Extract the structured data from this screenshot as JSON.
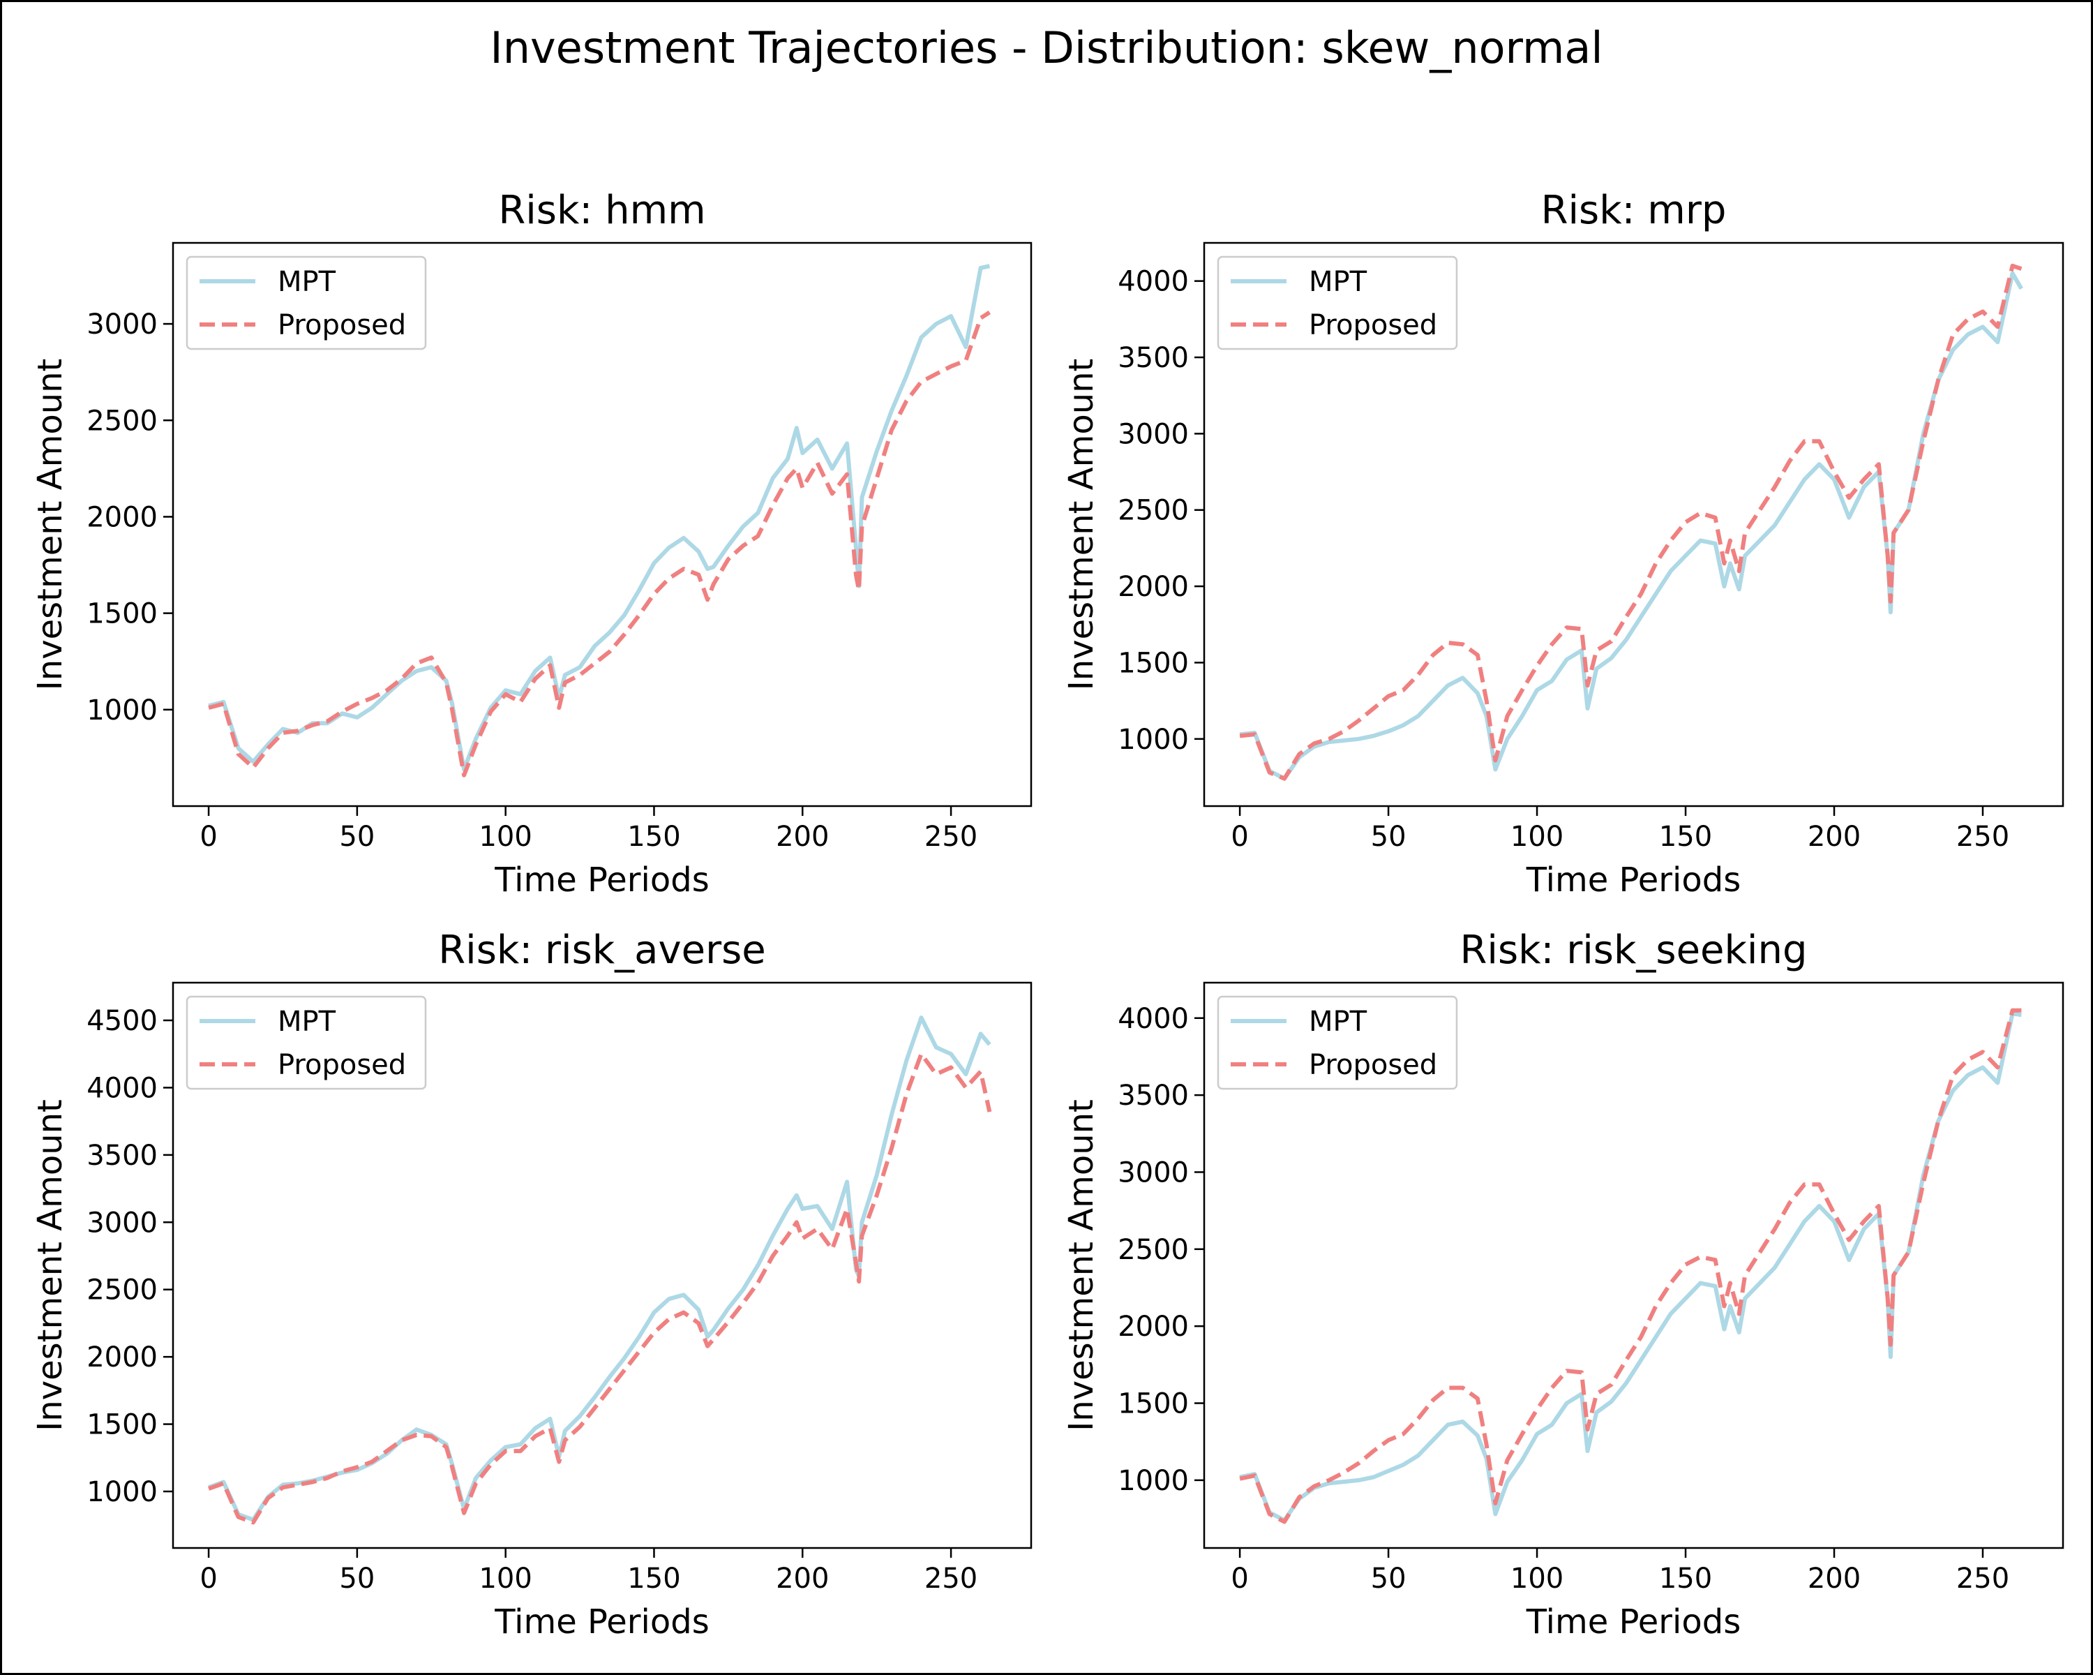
{
  "figure": {
    "suptitle": "Investment Trajectories - Distribution: skew_normal"
  },
  "colors": {
    "mpt": "#add8e6",
    "proposed": "#f08080"
  },
  "chart_data": [
    {
      "type": "line",
      "title": "Risk: hmm",
      "xlabel": "Time Periods",
      "ylabel": "Investment Amount",
      "xlim": [
        -12,
        277
      ],
      "ylim": [
        500,
        3420
      ],
      "xticks": [
        0,
        50,
        100,
        150,
        200,
        250
      ],
      "yticks": [
        1000,
        1500,
        2000,
        2500,
        3000
      ],
      "legend": "top-left",
      "grid": false,
      "series": [
        {
          "name": "MPT",
          "style": "solid",
          "x": [
            0,
            5,
            10,
            15,
            20,
            25,
            30,
            35,
            40,
            45,
            50,
            55,
            60,
            65,
            70,
            75,
            80,
            82,
            86,
            90,
            95,
            100,
            105,
            110,
            115,
            118,
            120,
            125,
            130,
            135,
            140,
            145,
            150,
            155,
            160,
            165,
            168,
            170,
            175,
            180,
            185,
            190,
            195,
            198,
            200,
            205,
            210,
            215,
            218,
            219,
            220,
            225,
            230,
            235,
            240,
            245,
            250,
            255,
            260,
            263
          ],
          "y": [
            1020,
            1040,
            800,
            730,
            820,
            900,
            880,
            930,
            930,
            980,
            960,
            1010,
            1080,
            1150,
            1200,
            1220,
            1150,
            1030,
            690,
            850,
            1010,
            1100,
            1080,
            1200,
            1270,
            1060,
            1180,
            1220,
            1330,
            1400,
            1490,
            1620,
            1760,
            1840,
            1890,
            1820,
            1730,
            1740,
            1850,
            1950,
            2020,
            2200,
            2300,
            2460,
            2330,
            2400,
            2250,
            2380,
            1840,
            1640,
            2100,
            2340,
            2550,
            2730,
            2930,
            3000,
            3040,
            2880,
            3290,
            3300
          ]
        },
        {
          "name": "Proposed",
          "style": "dashed",
          "x": [
            0,
            5,
            10,
            15,
            20,
            25,
            30,
            35,
            40,
            45,
            50,
            55,
            60,
            65,
            70,
            75,
            80,
            82,
            86,
            90,
            95,
            100,
            105,
            110,
            115,
            118,
            120,
            125,
            130,
            135,
            140,
            145,
            150,
            155,
            160,
            165,
            168,
            170,
            175,
            180,
            185,
            190,
            195,
            198,
            200,
            205,
            210,
            215,
            218,
            219,
            220,
            225,
            230,
            235,
            240,
            245,
            250,
            255,
            260,
            263
          ],
          "y": [
            1010,
            1030,
            770,
            700,
            800,
            880,
            890,
            920,
            940,
            990,
            1030,
            1060,
            1100,
            1160,
            1240,
            1270,
            1140,
            1000,
            660,
            820,
            990,
            1080,
            1040,
            1160,
            1230,
            1010,
            1140,
            1180,
            1240,
            1300,
            1390,
            1490,
            1600,
            1680,
            1730,
            1700,
            1570,
            1650,
            1780,
            1850,
            1900,
            2060,
            2200,
            2250,
            2150,
            2280,
            2120,
            2220,
            1700,
            1620,
            1950,
            2200,
            2450,
            2600,
            2700,
            2740,
            2780,
            2810,
            3030,
            3060
          ]
        }
      ]
    },
    {
      "type": "line",
      "title": "Risk: mrp",
      "xlabel": "Time Periods",
      "ylabel": "Investment Amount",
      "xlim": [
        -12,
        277
      ],
      "ylim": [
        560,
        4250
      ],
      "xticks": [
        0,
        50,
        100,
        150,
        200,
        250
      ],
      "yticks": [
        1000,
        1500,
        2000,
        2500,
        3000,
        3500,
        4000
      ],
      "legend": "top-left",
      "grid": false,
      "series": [
        {
          "name": "MPT",
          "style": "solid",
          "x": [
            0,
            5,
            10,
            15,
            20,
            25,
            30,
            35,
            40,
            45,
            50,
            55,
            60,
            65,
            70,
            75,
            80,
            83,
            86,
            90,
            95,
            100,
            105,
            110,
            115,
            117,
            120,
            125,
            130,
            135,
            140,
            145,
            150,
            155,
            160,
            163,
            165,
            168,
            170,
            175,
            180,
            185,
            190,
            195,
            200,
            205,
            210,
            215,
            218,
            219,
            220,
            225,
            230,
            235,
            240,
            245,
            250,
            255,
            260,
            263
          ],
          "y": [
            1030,
            1040,
            790,
            740,
            880,
            950,
            980,
            990,
            1000,
            1020,
            1050,
            1090,
            1150,
            1250,
            1350,
            1400,
            1300,
            1150,
            800,
            1000,
            1150,
            1320,
            1380,
            1520,
            1580,
            1200,
            1460,
            1530,
            1650,
            1800,
            1950,
            2100,
            2200,
            2300,
            2280,
            2000,
            2150,
            1980,
            2200,
            2300,
            2400,
            2550,
            2700,
            2800,
            2700,
            2450,
            2650,
            2750,
            2200,
            1830,
            2350,
            2500,
            3000,
            3350,
            3550,
            3650,
            3700,
            3600,
            4050,
            3950
          ]
        },
        {
          "name": "Proposed",
          "style": "dashed",
          "x": [
            0,
            5,
            10,
            15,
            20,
            25,
            30,
            35,
            40,
            45,
            50,
            55,
            60,
            65,
            70,
            75,
            80,
            83,
            86,
            90,
            95,
            100,
            105,
            110,
            115,
            117,
            120,
            125,
            130,
            135,
            140,
            145,
            150,
            155,
            160,
            163,
            165,
            168,
            170,
            175,
            180,
            185,
            190,
            195,
            200,
            205,
            210,
            215,
            218,
            219,
            220,
            225,
            230,
            235,
            240,
            245,
            250,
            255,
            260,
            263
          ],
          "y": [
            1020,
            1030,
            780,
            740,
            900,
            970,
            1000,
            1050,
            1120,
            1200,
            1280,
            1320,
            1420,
            1550,
            1630,
            1620,
            1550,
            1250,
            860,
            1150,
            1320,
            1480,
            1620,
            1730,
            1720,
            1350,
            1580,
            1640,
            1800,
            1950,
            2150,
            2300,
            2420,
            2480,
            2450,
            2150,
            2300,
            2100,
            2350,
            2500,
            2650,
            2820,
            2950,
            2950,
            2750,
            2580,
            2700,
            2800,
            2200,
            1900,
            2350,
            2500,
            2950,
            3350,
            3650,
            3750,
            3800,
            3700,
            4100,
            4080
          ]
        }
      ]
    },
    {
      "type": "line",
      "title": "Risk: risk_averse",
      "xlabel": "Time Periods",
      "ylabel": "Investment Amount",
      "xlim": [
        -12,
        277
      ],
      "ylim": [
        580,
        4780
      ],
      "xticks": [
        0,
        50,
        100,
        150,
        200,
        250
      ],
      "yticks": [
        1000,
        1500,
        2000,
        2500,
        3000,
        3500,
        4000,
        4500
      ],
      "legend": "top-left",
      "grid": false,
      "series": [
        {
          "name": "MPT",
          "style": "solid",
          "x": [
            0,
            5,
            10,
            15,
            20,
            25,
            30,
            35,
            40,
            45,
            50,
            55,
            60,
            65,
            70,
            75,
            80,
            82,
            86,
            90,
            95,
            100,
            105,
            110,
            115,
            118,
            120,
            125,
            130,
            135,
            140,
            145,
            150,
            155,
            160,
            165,
            168,
            170,
            175,
            180,
            185,
            190,
            195,
            198,
            200,
            205,
            210,
            215,
            218,
            219,
            220,
            225,
            230,
            235,
            240,
            245,
            250,
            255,
            260,
            263
          ],
          "y": [
            1030,
            1070,
            830,
            790,
            960,
            1050,
            1060,
            1080,
            1110,
            1140,
            1160,
            1210,
            1280,
            1380,
            1460,
            1420,
            1350,
            1200,
            870,
            1100,
            1230,
            1330,
            1350,
            1470,
            1540,
            1260,
            1450,
            1560,
            1700,
            1850,
            1990,
            2150,
            2330,
            2430,
            2460,
            2350,
            2150,
            2200,
            2360,
            2500,
            2680,
            2900,
            3100,
            3200,
            3100,
            3120,
            2950,
            3300,
            2650,
            2600,
            3000,
            3350,
            3800,
            4200,
            4520,
            4300,
            4250,
            4100,
            4400,
            4320
          ]
        },
        {
          "name": "Proposed",
          "style": "dashed",
          "x": [
            0,
            5,
            10,
            15,
            20,
            25,
            30,
            35,
            40,
            45,
            50,
            55,
            60,
            65,
            70,
            75,
            80,
            82,
            86,
            90,
            95,
            100,
            105,
            110,
            115,
            118,
            120,
            125,
            130,
            135,
            140,
            145,
            150,
            155,
            160,
            165,
            168,
            170,
            175,
            180,
            185,
            190,
            195,
            198,
            200,
            205,
            210,
            215,
            218,
            219,
            220,
            225,
            230,
            235,
            240,
            245,
            250,
            255,
            260,
            263
          ],
          "y": [
            1020,
            1060,
            810,
            770,
            950,
            1030,
            1050,
            1070,
            1100,
            1150,
            1180,
            1220,
            1300,
            1380,
            1420,
            1410,
            1330,
            1180,
            840,
            1060,
            1200,
            1300,
            1300,
            1410,
            1470,
            1220,
            1380,
            1480,
            1620,
            1760,
            1900,
            2040,
            2180,
            2280,
            2330,
            2250,
            2080,
            2130,
            2260,
            2400,
            2550,
            2750,
            2900,
            3000,
            2880,
            2950,
            2800,
            3100,
            2700,
            2560,
            2900,
            3200,
            3550,
            3950,
            4250,
            4100,
            4150,
            4000,
            4120,
            3820
          ]
        }
      ]
    },
    {
      "type": "line",
      "title": "Risk: risk_seeking",
      "xlabel": "Time Periods",
      "ylabel": "Investment Amount",
      "xlim": [
        -12,
        277
      ],
      "ylim": [
        560,
        4230
      ],
      "xticks": [
        0,
        50,
        100,
        150,
        200,
        250
      ],
      "yticks": [
        1000,
        1500,
        2000,
        2500,
        3000,
        3500,
        4000
      ],
      "legend": "top-left",
      "grid": false,
      "series": [
        {
          "name": "MPT",
          "style": "solid",
          "x": [
            0,
            5,
            10,
            15,
            20,
            25,
            30,
            35,
            40,
            45,
            50,
            55,
            60,
            65,
            70,
            75,
            80,
            83,
            86,
            90,
            95,
            100,
            105,
            110,
            115,
            117,
            120,
            125,
            130,
            135,
            140,
            145,
            150,
            155,
            160,
            163,
            165,
            168,
            170,
            175,
            180,
            185,
            190,
            195,
            200,
            205,
            210,
            215,
            218,
            219,
            220,
            225,
            230,
            235,
            240,
            245,
            250,
            255,
            260,
            263
          ],
          "y": [
            1020,
            1040,
            790,
            740,
            880,
            950,
            980,
            990,
            1000,
            1020,
            1060,
            1100,
            1160,
            1260,
            1360,
            1380,
            1290,
            1140,
            780,
            990,
            1130,
            1300,
            1360,
            1500,
            1560,
            1190,
            1440,
            1510,
            1630,
            1780,
            1930,
            2080,
            2180,
            2280,
            2260,
            1980,
            2130,
            1960,
            2180,
            2280,
            2380,
            2530,
            2680,
            2780,
            2680,
            2430,
            2630,
            2730,
            2180,
            1800,
            2330,
            2480,
            2980,
            3330,
            3530,
            3630,
            3680,
            3580,
            4030,
            4020
          ]
        },
        {
          "name": "Proposed",
          "style": "dashed",
          "x": [
            0,
            5,
            10,
            15,
            20,
            25,
            30,
            35,
            40,
            45,
            50,
            55,
            60,
            65,
            70,
            75,
            80,
            83,
            86,
            90,
            95,
            100,
            105,
            110,
            115,
            117,
            120,
            125,
            130,
            135,
            140,
            145,
            150,
            155,
            160,
            163,
            165,
            168,
            170,
            175,
            180,
            185,
            190,
            195,
            200,
            205,
            210,
            215,
            218,
            219,
            220,
            225,
            230,
            235,
            240,
            245,
            250,
            255,
            260,
            263
          ],
          "y": [
            1010,
            1030,
            780,
            730,
            890,
            960,
            1000,
            1050,
            1110,
            1190,
            1260,
            1300,
            1400,
            1520,
            1600,
            1600,
            1530,
            1230,
            850,
            1130,
            1300,
            1460,
            1600,
            1710,
            1700,
            1330,
            1560,
            1620,
            1780,
            1930,
            2130,
            2280,
            2400,
            2450,
            2430,
            2130,
            2280,
            2080,
            2330,
            2480,
            2630,
            2800,
            2920,
            2920,
            2730,
            2560,
            2680,
            2780,
            2180,
            1880,
            2330,
            2480,
            2930,
            3330,
            3630,
            3730,
            3780,
            3680,
            4050,
            4050
          ]
        }
      ]
    }
  ]
}
